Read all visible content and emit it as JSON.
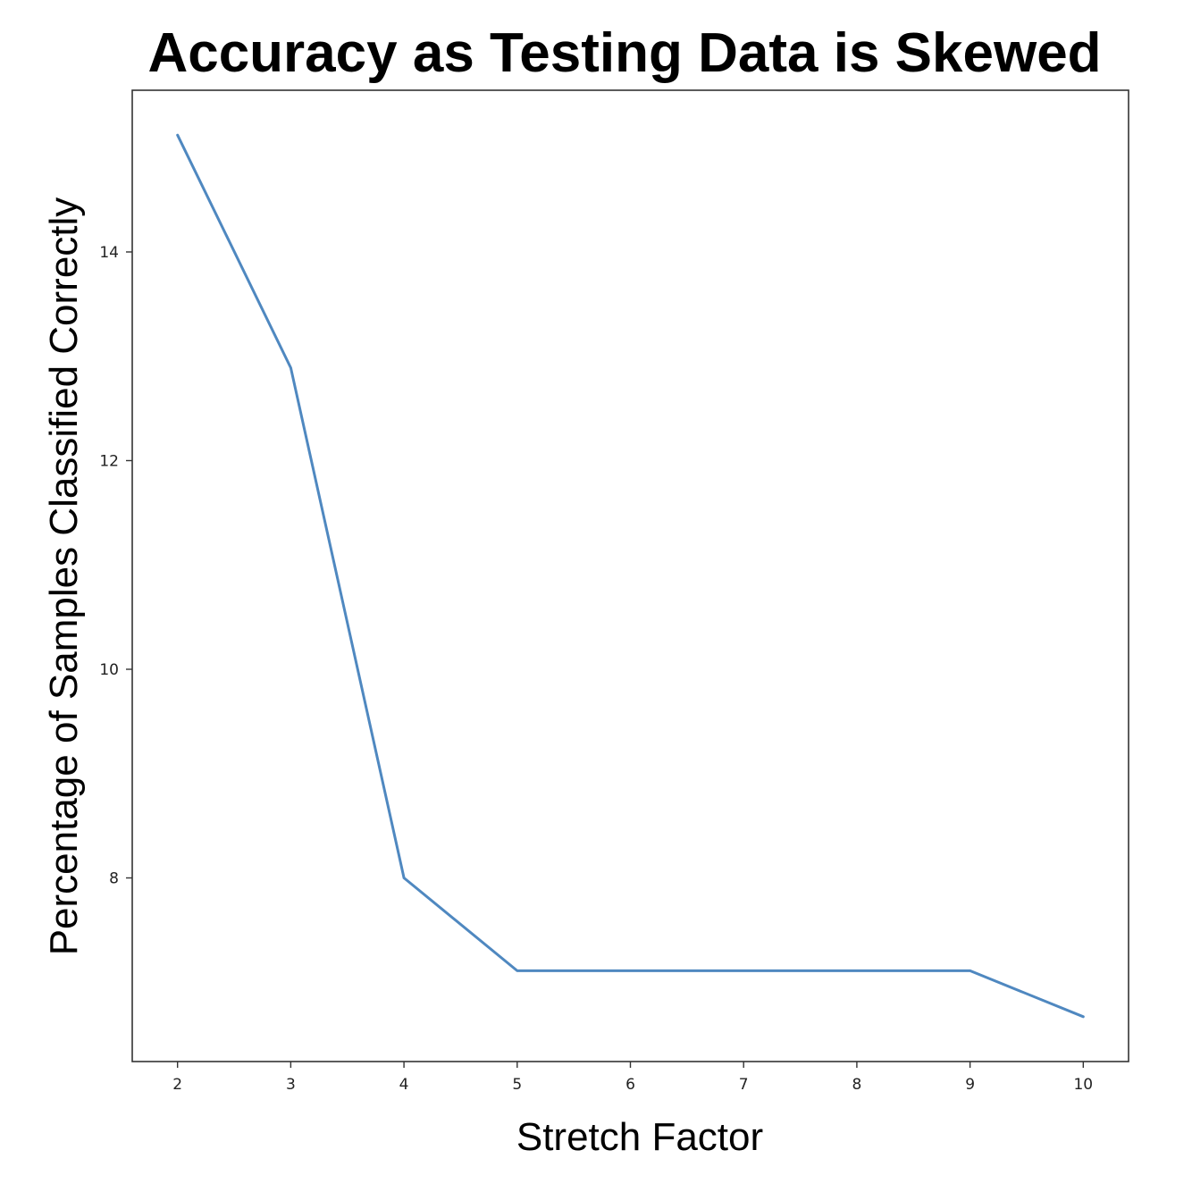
{
  "chart_data": {
    "type": "line",
    "title": "Accuracy as Testing Data is Skewed",
    "xlabel": "Stretch Factor",
    "ylabel": "Percentage of Samples Classified Correctly",
    "x": [
      2,
      3,
      4,
      5,
      6,
      7,
      8,
      9,
      10
    ],
    "series": [
      {
        "values": [
          15.12,
          12.89,
          8.0,
          7.11,
          7.11,
          7.11,
          7.11,
          7.11,
          6.67
        ],
        "color": "#4f88c0"
      }
    ],
    "xticks": [
      2,
      3,
      4,
      5,
      6,
      7,
      8,
      9,
      10
    ],
    "yticks": [
      8,
      10,
      12,
      14
    ],
    "xlim": [
      1.6,
      10.4
    ],
    "ylim": [
      6.24,
      15.55
    ],
    "grid": false,
    "legend": "none"
  }
}
